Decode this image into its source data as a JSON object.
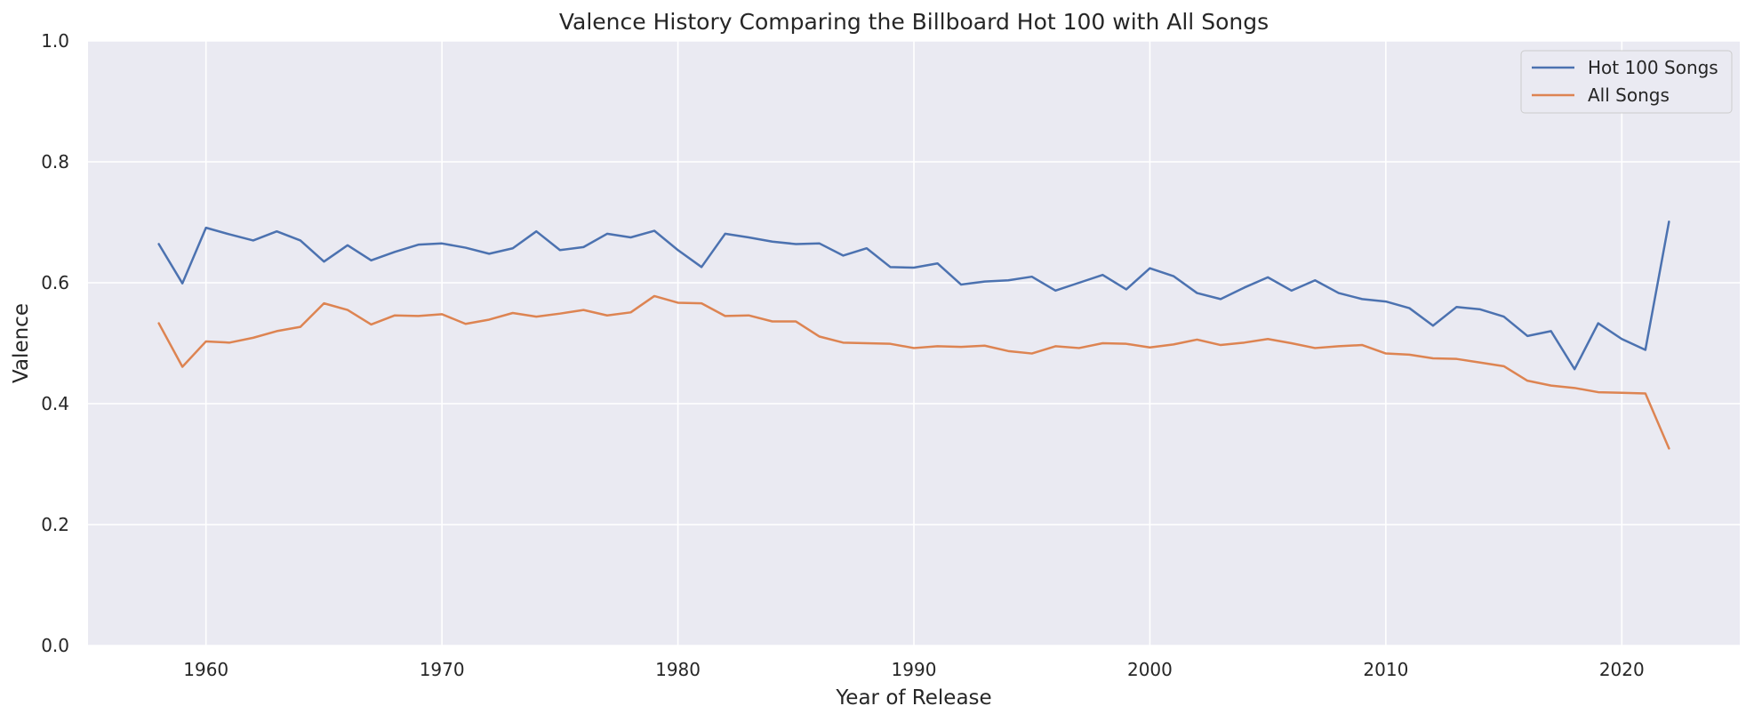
{
  "chart_data": {
    "type": "line",
    "title": "Valence History Comparing the Billboard Hot 100 with All Songs",
    "xlabel": "Year of Release",
    "ylabel": "Valence",
    "xlim": [
      1955,
      2025
    ],
    "ylim": [
      0,
      1
    ],
    "xticks": [
      1960,
      1970,
      1980,
      1990,
      2000,
      2010,
      2020
    ],
    "yticks": [
      "0.0",
      "0.2",
      "0.4",
      "0.6",
      "0.8",
      "1.0"
    ],
    "grid": true,
    "legend_position": "top-right",
    "x": [
      1958,
      1959,
      1960,
      1961,
      1962,
      1963,
      1964,
      1965,
      1966,
      1967,
      1968,
      1969,
      1970,
      1971,
      1972,
      1973,
      1974,
      1975,
      1976,
      1977,
      1978,
      1979,
      1980,
      1981,
      1982,
      1983,
      1984,
      1985,
      1986,
      1987,
      1988,
      1989,
      1990,
      1991,
      1992,
      1993,
      1994,
      1995,
      1996,
      1997,
      1998,
      1999,
      2000,
      2001,
      2002,
      2003,
      2004,
      2005,
      2006,
      2007,
      2008,
      2009,
      2010,
      2011,
      2012,
      2013,
      2014,
      2015,
      2016,
      2017,
      2018,
      2019,
      2020,
      2021,
      2022
    ],
    "series": [
      {
        "name": "Hot 100 Songs",
        "color": "#4c72b0",
        "values": [
          0.664,
          0.599,
          0.691,
          0.68,
          0.67,
          0.685,
          0.67,
          0.635,
          0.662,
          0.637,
          0.651,
          0.663,
          0.665,
          0.658,
          0.648,
          0.657,
          0.685,
          0.654,
          0.659,
          0.681,
          0.675,
          0.686,
          0.654,
          0.626,
          0.681,
          0.675,
          0.668,
          0.664,
          0.665,
          0.645,
          0.657,
          0.626,
          0.625,
          0.632,
          0.597,
          0.602,
          0.604,
          0.61,
          0.587,
          0.6,
          0.613,
          0.589,
          0.624,
          0.611,
          0.583,
          0.573,
          0.592,
          0.609,
          0.587,
          0.604,
          0.583,
          0.573,
          0.569,
          0.558,
          0.529,
          0.56,
          0.556,
          0.544,
          0.512,
          0.52,
          0.457,
          0.533,
          0.507,
          0.489,
          0.701
        ]
      },
      {
        "name": "All Songs",
        "color": "#dd8452",
        "values": [
          0.533,
          0.461,
          0.503,
          0.501,
          0.509,
          0.52,
          0.527,
          0.566,
          0.555,
          0.531,
          0.546,
          0.545,
          0.548,
          0.532,
          0.539,
          0.55,
          0.544,
          0.549,
          0.555,
          0.546,
          0.551,
          0.578,
          0.567,
          0.566,
          0.545,
          0.546,
          0.536,
          0.536,
          0.511,
          0.501,
          0.5,
          0.499,
          0.492,
          0.495,
          0.494,
          0.496,
          0.487,
          0.483,
          0.495,
          0.492,
          0.5,
          0.499,
          0.493,
          0.498,
          0.506,
          0.497,
          0.501,
          0.507,
          0.5,
          0.492,
          0.495,
          0.497,
          0.483,
          0.481,
          0.475,
          0.474,
          0.468,
          0.462,
          0.438,
          0.43,
          0.426,
          0.419,
          0.418,
          0.417,
          0.326
        ]
      }
    ]
  }
}
